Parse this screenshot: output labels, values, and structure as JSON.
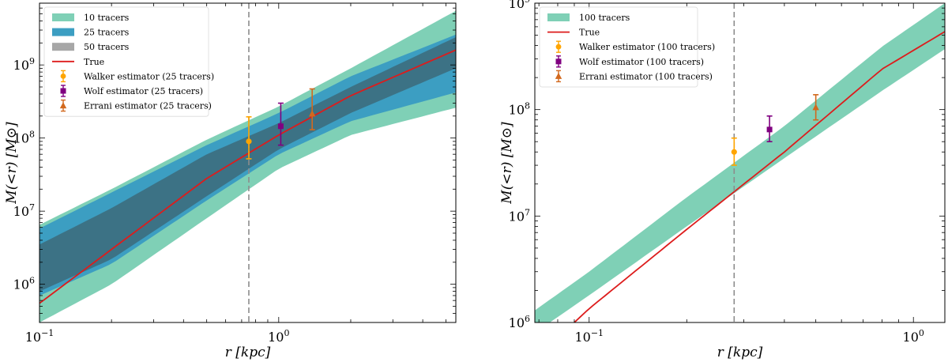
{
  "chart_data": [
    {
      "type": "line",
      "xscale": "log",
      "yscale": "log",
      "xlim": [
        0.1,
        5.5
      ],
      "ylim": [
        300000,
        7000000000
      ],
      "xlabel": "r [kpc]",
      "ylabel": "M(<r) [M⊙]",
      "xticks": [
        {
          "v": 0.1,
          "b": "10",
          "e": "−1"
        },
        {
          "v": 1,
          "b": "10",
          "e": "0"
        }
      ],
      "yticks": [
        {
          "v": 1000000,
          "b": "10",
          "e": "6"
        },
        {
          "v": 10000000,
          "b": "10",
          "e": "7"
        },
        {
          "v": 100000000,
          "b": "10",
          "e": "8"
        },
        {
          "v": 1000000000,
          "b": "10",
          "e": "9"
        }
      ],
      "vline": 0.75,
      "bands": [
        {
          "name": "10 tracers",
          "color": "#7fd0b6",
          "x": [
            0.1,
            0.2,
            0.5,
            1,
            2,
            5.5
          ],
          "low": [
            300000,
            1000000,
            8000000,
            38000000,
            110000000,
            260000000
          ],
          "high": [
            6500000,
            20000000,
            95000000,
            270000000,
            900000000,
            5500000000
          ]
        },
        {
          "name": "25 tracers",
          "color": "#3c9ec2",
          "x": [
            0.1,
            0.2,
            0.5,
            1,
            2,
            5.5
          ],
          "low": [
            700000,
            1900000,
            14000000,
            60000000,
            170000000,
            420000000
          ],
          "high": [
            5800000,
            18000000,
            80000000,
            220000000,
            700000000,
            2600000000
          ]
        },
        {
          "name": "50 tracers",
          "color": "#3c3c3c",
          "opacity": 0.45,
          "x": [
            0.1,
            0.2,
            0.5,
            1,
            2,
            5.5
          ],
          "low": [
            800000,
            2200000,
            16000000,
            70000000,
            220000000,
            900000000
          ],
          "high": [
            3500000,
            11000000,
            60000000,
            160000000,
            500000000,
            2400000000
          ]
        }
      ],
      "series": [
        {
          "name": "True",
          "color": "#dd1c1c",
          "x": [
            0.1,
            0.2,
            0.5,
            1,
            2,
            5.5
          ],
          "y": [
            550000,
            3000000,
            28000000,
            110000000,
            380000000,
            1600000000
          ]
        }
      ],
      "estimators": [
        {
          "name": "Walker estimator (25 tracers)",
          "color": "#ffa500",
          "marker": "circle",
          "x": 0.75,
          "y": 90000000,
          "lo": 52000000,
          "hi": 195000000
        },
        {
          "name": "Wolf estimator (25 tracers)",
          "color": "#800080",
          "marker": "square",
          "x": 1.02,
          "y": 145000000,
          "lo": 80000000,
          "hi": 300000000
        },
        {
          "name": "Errani estimator (25 tracers)",
          "color": "#d2691e",
          "marker": "triangle",
          "x": 1.38,
          "y": 215000000,
          "lo": 130000000,
          "hi": 470000000
        }
      ],
      "legend_position": "top-left"
    },
    {
      "type": "line",
      "xscale": "log",
      "yscale": "log",
      "xlim": [
        0.068,
        1.25
      ],
      "ylim": [
        1000000,
        1000000000
      ],
      "xlabel": "r [kpc]",
      "ylabel": "M(<r) [M⊙]",
      "xticks": [
        {
          "v": 0.1,
          "b": "10",
          "e": "−1"
        },
        {
          "v": 1,
          "b": "10",
          "e": "0"
        }
      ],
      "yticks": [
        {
          "v": 1000000,
          "b": "10",
          "e": "6"
        },
        {
          "v": 10000000,
          "b": "10",
          "e": "7"
        },
        {
          "v": 100000000,
          "b": "10",
          "e": "8"
        },
        {
          "v": 1000000000,
          "b": "10",
          "e": "9"
        }
      ],
      "vline": 0.28,
      "bands": [
        {
          "name": "100 tracers",
          "color": "#7fd0b6",
          "x": [
            0.068,
            0.1,
            0.2,
            0.4,
            0.8,
            1.25
          ],
          "low": [
            800000,
            1800000,
            8000000,
            35000000,
            150000000,
            370000000
          ],
          "high": [
            1300000,
            3000000,
            15000000,
            70000000,
            390000000,
            1000000000
          ]
        }
      ],
      "series": [
        {
          "name": "True",
          "color": "#dd1c1c",
          "x": [
            0.09,
            0.1,
            0.2,
            0.4,
            0.8,
            1.25
          ],
          "y": [
            1000000,
            1350000,
            7500000,
            40000000,
            240000000,
            540000000
          ]
        }
      ],
      "estimators": [
        {
          "name": "Walker estimator (100 tracers)",
          "color": "#ffa500",
          "marker": "circle",
          "x": 0.28,
          "y": 40000000,
          "lo": 30000000,
          "hi": 54000000
        },
        {
          "name": "Wolf estimator (100 tracers)",
          "color": "#800080",
          "marker": "square",
          "x": 0.36,
          "y": 65000000,
          "lo": 50000000,
          "hi": 87000000
        },
        {
          "name": "Errani estimator (100 tracers)",
          "color": "#d2691e",
          "marker": "triangle",
          "x": 0.5,
          "y": 105000000,
          "lo": 80000000,
          "hi": 138000000
        }
      ],
      "legend_position": "top-left"
    }
  ]
}
